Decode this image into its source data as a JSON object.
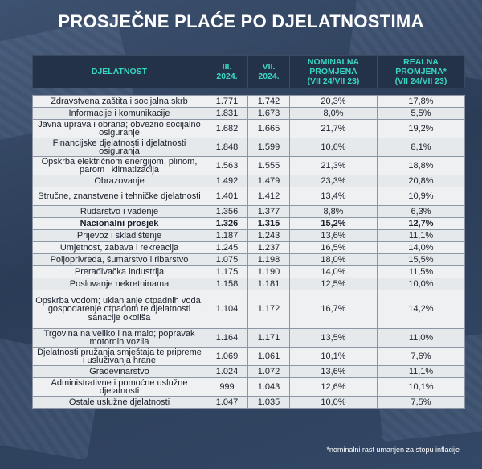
{
  "title": "PROSJEČNE PLAĆE PO DJELATNOSTIMA",
  "headers": {
    "activity": "DJELATNOST",
    "col1": [
      "III.",
      "2024."
    ],
    "col2": [
      "VII.",
      "2024."
    ],
    "col3": [
      "NOMINALNA",
      "PROMJENA",
      "(VII 24/VII 23)"
    ],
    "col4": [
      "REALNA",
      "PROMJENA*",
      "(VII 24/VII 23)"
    ]
  },
  "rows": [
    {
      "label": "Zdravstvena zaštita i socijalna skrb",
      "mar": "1.771",
      "jul": "1.742",
      "nom": "20,3%",
      "real": "17,8%"
    },
    {
      "label": "Informacije i komunikacije",
      "mar": "1.831",
      "jul": "1.673",
      "nom": "8,0%",
      "real": "5,5%"
    },
    {
      "label": "Javna uprava i obrana; obvezno socijalno osiguranje",
      "mar": "1.682",
      "jul": "1.665",
      "nom": "21,7%",
      "real": "19,2%"
    },
    {
      "label": "Financijske djelatnosti i djelatnosti osiguranja",
      "mar": "1.848",
      "jul": "1.599",
      "nom": "10,6%",
      "real": "8,1%"
    },
    {
      "label": "Opskrba električnom energijom, plinom, parom i klimatizacija",
      "mar": "1.563",
      "jul": "1.555",
      "nom": "21,3%",
      "real": "18,8%"
    },
    {
      "label": "Obrazovanje",
      "mar": "1.492",
      "jul": "1.479",
      "nom": "23,3%",
      "real": "20,8%"
    },
    {
      "label": "Stručne, znanstvene i tehničke djelatnosti",
      "mar": "1.401",
      "jul": "1.412",
      "nom": "13,4%",
      "real": "10,9%"
    },
    {
      "label": "Rudarstvo i vađenje",
      "mar": "1.356",
      "jul": "1.377",
      "nom": "8,8%",
      "real": "6,3%"
    },
    {
      "label": "Nacionalni prosjek",
      "mar": "1.326",
      "jul": "1.315",
      "nom": "15,2%",
      "real": "12,7%",
      "bold": true
    },
    {
      "label": "Prijevoz i skladištenje",
      "mar": "1.187",
      "jul": "1.243",
      "nom": "13,6%",
      "real": "11,1%"
    },
    {
      "label": "Umjetnost, zabava i rekreacija",
      "mar": "1.245",
      "jul": "1.237",
      "nom": "16,5%",
      "real": "14,0%"
    },
    {
      "label": "Poljoprivreda, šumarstvo i ribarstvo",
      "mar": "1.075",
      "jul": "1.198",
      "nom": "18,0%",
      "real": "15,5%"
    },
    {
      "label": "Prerađivačka industrija",
      "mar": "1.175",
      "jul": "1.190",
      "nom": "14,0%",
      "real": "11,5%"
    },
    {
      "label": "Poslovanje nekretninama",
      "mar": "1.158",
      "jul": "1.181",
      "nom": "12,5%",
      "real": "10,0%"
    },
    {
      "label": "Opskrba vodom; uklanjanje otpadnih voda, gospodarenje otpadom te djelatnosti sanacije okoliša",
      "mar": "1.104",
      "jul": "1.172",
      "nom": "16,7%",
      "real": "14,2%"
    },
    {
      "label": "Trgovina na veliko i na malo; popravak motornih vozila",
      "mar": "1.164",
      "jul": "1.171",
      "nom": "13,5%",
      "real": "11,0%"
    },
    {
      "label": "Djelatnosti pružanja smještaja te pripreme i usluživanja hrane",
      "mar": "1.069",
      "jul": "1.061",
      "nom": "10,1%",
      "real": "7,6%"
    },
    {
      "label": "Građevinarstvo",
      "mar": "1.024",
      "jul": "1.072",
      "nom": "13,6%",
      "real": "11,1%"
    },
    {
      "label": "Administrativne i pomoćne uslužne djelatnosti",
      "mar": "999",
      "jul": "1.043",
      "nom": "12,6%",
      "real": "10,1%"
    },
    {
      "label": "Ostale uslužne djelatnosti",
      "mar": "1.047",
      "jul": "1.035",
      "nom": "10,0%",
      "real": "7,5%"
    }
  ],
  "footnote": "*nominalni rast umanjen za stopu inflacije",
  "colors": {
    "header_bg": "#233247",
    "header_text": "#39d6c4",
    "cell_bg": "#eef0f2"
  }
}
